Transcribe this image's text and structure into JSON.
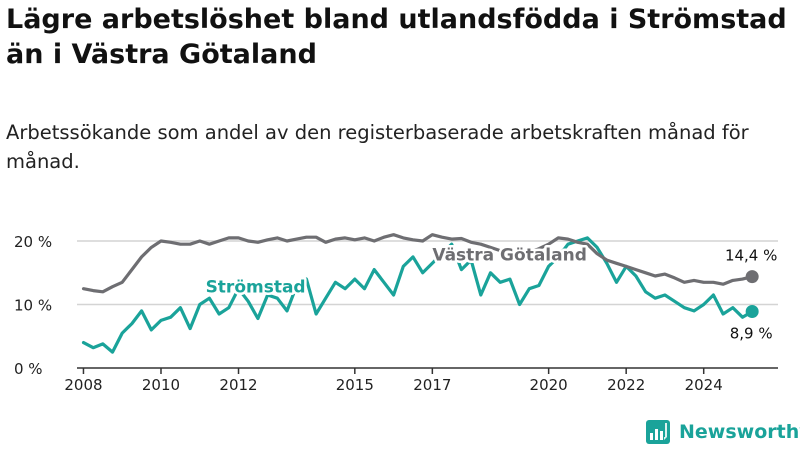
{
  "title": "Lägre arbetslöshet bland utlandsfödda i Strömstad än i Västra Götaland",
  "subtitle": "Arbetssökande som andel av den registerbaserade arbetskraften månad för månad.",
  "brand": "Newsworthy",
  "colors": {
    "stromstad": "#1aa39a",
    "vastra": "#6e6e72",
    "grid": "#d4d4d4",
    "axis": "#333333"
  },
  "chart_data": {
    "type": "line",
    "title": "Lägre arbetslöshet bland utlandsfödda i Strömstad än i Västra Götaland",
    "subtitle": "Arbetssökande som andel av den registerbaserade arbetskraften månad för månad.",
    "xlabel": "",
    "ylabel": "",
    "xlim": [
      "2007-11",
      "2025-12"
    ],
    "ylim": [
      0,
      23
    ],
    "y_ticks": [
      0,
      10,
      20
    ],
    "y_tick_labels": [
      "0 %",
      "10 %",
      "20 %"
    ],
    "x_ticks": [
      "2008",
      "2010",
      "2012",
      "2015",
      "2017",
      "2020",
      "2022",
      "2024"
    ],
    "grid": true,
    "series": [
      {
        "name": "Strömstad",
        "color": "#1aa39a",
        "x": [
          "2008-01",
          "2008-04",
          "2008-07",
          "2008-10",
          "2009-01",
          "2009-04",
          "2009-07",
          "2009-10",
          "2010-01",
          "2010-04",
          "2010-07",
          "2010-10",
          "2011-01",
          "2011-04",
          "2011-07",
          "2011-10",
          "2012-01",
          "2012-04",
          "2012-07",
          "2012-10",
          "2013-01",
          "2013-04",
          "2013-07",
          "2013-10",
          "2014-01",
          "2014-04",
          "2014-07",
          "2014-10",
          "2015-01",
          "2015-04",
          "2015-07",
          "2015-10",
          "2016-01",
          "2016-04",
          "2016-07",
          "2016-10",
          "2017-01",
          "2017-04",
          "2017-07",
          "2017-10",
          "2018-01",
          "2018-04",
          "2018-07",
          "2018-10",
          "2019-01",
          "2019-04",
          "2019-07",
          "2019-10",
          "2020-01",
          "2020-04",
          "2020-07",
          "2020-10",
          "2021-01",
          "2021-04",
          "2021-07",
          "2021-10",
          "2022-01",
          "2022-04",
          "2022-07",
          "2022-10",
          "2023-01",
          "2023-04",
          "2023-07",
          "2023-10",
          "2024-01",
          "2024-04",
          "2024-07",
          "2024-10",
          "2025-01",
          "2025-04"
        ],
        "values": [
          4.0,
          3.2,
          3.8,
          2.5,
          5.5,
          7.0,
          9.0,
          6.0,
          7.5,
          8.0,
          9.5,
          6.2,
          10.0,
          11.0,
          8.5,
          9.5,
          12.5,
          10.5,
          7.8,
          11.5,
          11.0,
          9.0,
          13.0,
          14.0,
          8.5,
          11.0,
          13.5,
          12.5,
          14.0,
          12.5,
          15.5,
          13.5,
          11.5,
          16.0,
          17.5,
          15.0,
          16.5,
          18.0,
          19.5,
          15.5,
          17.0,
          11.5,
          15.0,
          13.5,
          14.0,
          10.0,
          12.5,
          13.0,
          16.0,
          17.5,
          19.5,
          20.0,
          20.5,
          19.0,
          16.5,
          13.5,
          16.0,
          14.5,
          12.0,
          11.0,
          11.5,
          10.5,
          9.5,
          9.0,
          10.0,
          11.5,
          8.5,
          9.5,
          8.0,
          8.9
        ]
      },
      {
        "name": "Västra Götaland",
        "color": "#6e6e72",
        "x": [
          "2008-01",
          "2008-04",
          "2008-07",
          "2008-10",
          "2009-01",
          "2009-04",
          "2009-07",
          "2009-10",
          "2010-01",
          "2010-04",
          "2010-07",
          "2010-10",
          "2011-01",
          "2011-04",
          "2011-07",
          "2011-10",
          "2012-01",
          "2012-04",
          "2012-07",
          "2012-10",
          "2013-01",
          "2013-04",
          "2013-07",
          "2013-10",
          "2014-01",
          "2014-04",
          "2014-07",
          "2014-10",
          "2015-01",
          "2015-04",
          "2015-07",
          "2015-10",
          "2016-01",
          "2016-04",
          "2016-07",
          "2016-10",
          "2017-01",
          "2017-04",
          "2017-07",
          "2017-10",
          "2018-01",
          "2018-04",
          "2018-07",
          "2018-10",
          "2019-01",
          "2019-04",
          "2019-07",
          "2019-10",
          "2020-01",
          "2020-04",
          "2020-07",
          "2020-10",
          "2021-01",
          "2021-04",
          "2021-07",
          "2021-10",
          "2022-01",
          "2022-04",
          "2022-07",
          "2022-10",
          "2023-01",
          "2023-04",
          "2023-07",
          "2023-10",
          "2024-01",
          "2024-04",
          "2024-07",
          "2024-10",
          "2025-01",
          "2025-04"
        ],
        "values": [
          12.5,
          12.2,
          12.0,
          12.8,
          13.5,
          15.5,
          17.5,
          19.0,
          20.0,
          19.8,
          19.5,
          19.5,
          20.0,
          19.5,
          20.0,
          20.5,
          20.5,
          20.0,
          19.8,
          20.2,
          20.5,
          20.0,
          20.3,
          20.6,
          20.6,
          19.8,
          20.3,
          20.5,
          20.2,
          20.5,
          20.0,
          20.6,
          21.0,
          20.5,
          20.2,
          20.0,
          21.0,
          20.6,
          20.3,
          20.4,
          19.8,
          19.5,
          19.0,
          18.5,
          18.5,
          18.0,
          18.2,
          18.8,
          19.5,
          20.5,
          20.3,
          19.8,
          19.5,
          18.0,
          17.0,
          16.5,
          16.0,
          15.5,
          15.0,
          14.5,
          14.8,
          14.2,
          13.5,
          13.8,
          13.5,
          13.5,
          13.2,
          13.8,
          14.0,
          14.4
        ]
      }
    ],
    "annotations": [
      {
        "series": "Strömstad",
        "text": "Strömstad"
      },
      {
        "series": "Västra Götaland",
        "text": "Västra Götaland"
      },
      {
        "series": "Västra Götaland",
        "text": "14,4 %"
      },
      {
        "series": "Strömstad",
        "text": "8,9 %"
      }
    ]
  }
}
